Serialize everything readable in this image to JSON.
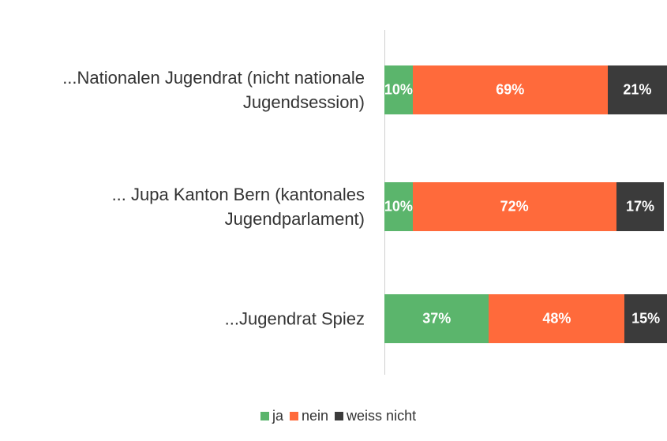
{
  "chart_data": {
    "type": "stacked_bar_horizontal",
    "categories": [
      "...Nationalen Jugendrat (nicht nationale Jugendsession)",
      "... Jupa Kanton Bern (kantonales Jugendparlament)",
      "...Jugendrat Spiez"
    ],
    "series": [
      {
        "name": "ja",
        "color": "#5bb56c",
        "values": [
          10,
          10,
          37
        ],
        "value_labels": [
          "10%",
          "10%",
          "37%"
        ]
      },
      {
        "name": "nein",
        "color": "#ff6a3b",
        "values": [
          69,
          72,
          48
        ],
        "value_labels": [
          "69%",
          "72%",
          "48%"
        ]
      },
      {
        "name": "weiss nicht",
        "color": "#3b3b3b",
        "values": [
          21,
          17,
          15
        ],
        "value_labels": [
          "21%",
          "17%",
          "15%"
        ]
      }
    ],
    "xlim": [
      0,
      100
    ],
    "legend": "bottom"
  }
}
